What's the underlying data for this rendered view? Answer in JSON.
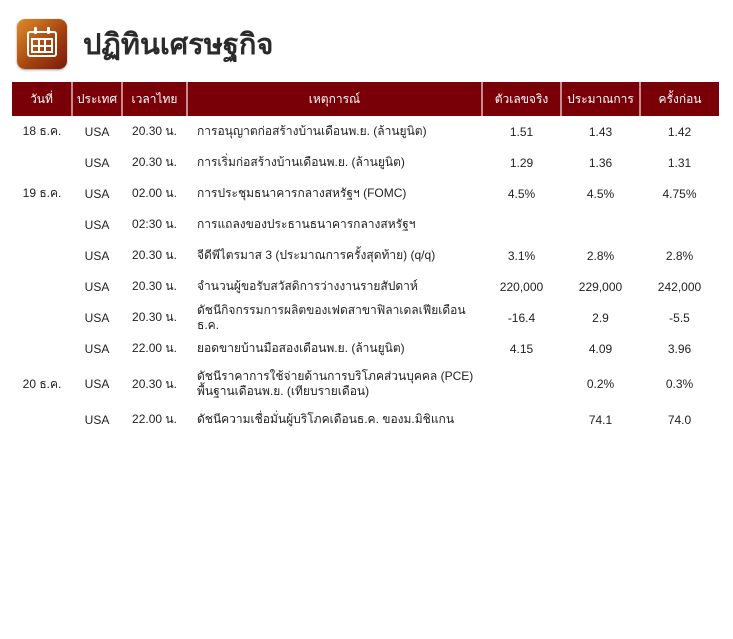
{
  "header": {
    "title": "ปฏิทินเศรษฐกิจ",
    "icon": "calendar-icon"
  },
  "table": {
    "columns": [
      "วันที่",
      "ประเทศ",
      "เวลาไทย",
      "เหตุการณ์",
      "ตัวเลขจริง",
      "ประมาณการ",
      "ครั้งก่อน"
    ],
    "rows": [
      {
        "date": "18 ธ.ค.",
        "country": "USA",
        "time": "20.30 น.",
        "event": "การอนุญาตก่อสร้างบ้านเดือนพ.ย. (ล้านยูนิต)",
        "actual": "1.51",
        "forecast": "1.43",
        "previous": "1.42"
      },
      {
        "date": "",
        "country": "USA",
        "time": "20.30 น.",
        "event": "การเริ่มก่อสร้างบ้านเดือนพ.ย. (ล้านยูนิต)",
        "actual": "1.29",
        "forecast": "1.36",
        "previous": "1.31"
      },
      {
        "date": "19 ธ.ค.",
        "country": "USA",
        "time": "02.00 น.",
        "event": "การประชุมธนาคารกลางสหรัฐฯ (FOMC)",
        "actual": "4.5%",
        "forecast": "4.5%",
        "previous": "4.75%"
      },
      {
        "date": "",
        "country": "USA",
        "time": "02:30 น.",
        "event": "การแถลงของประธานธนาคารกลางสหรัฐฯ",
        "actual": "",
        "forecast": "",
        "previous": ""
      },
      {
        "date": "",
        "country": "USA",
        "time": "20.30 น.",
        "event": "จีดีพีไตรมาส 3 (ประมาณการครั้งสุดท้าย) (q/q)",
        "actual": "3.1%",
        "forecast": "2.8%",
        "previous": "2.8%"
      },
      {
        "date": "",
        "country": "USA",
        "time": "20.30 น.",
        "event": "จำนวนผู้ขอรับสวัสดิการว่างงานรายสัปดาห์",
        "actual": "220,000",
        "forecast": "229,000",
        "previous": "242,000"
      },
      {
        "date": "",
        "country": "USA",
        "time": "20.30 น.",
        "event": "ดัชนีกิจกรรมการผลิตของเฟดสาขาฟิลาเดลเฟียเดือนธ.ค.",
        "actual": "-16.4",
        "forecast": "2.9",
        "previous": "-5.5"
      },
      {
        "date": "",
        "country": "USA",
        "time": "22.00 น.",
        "event": "ยอดขายบ้านมือสองเดือนพ.ย. (ล้านยูนิต)",
        "actual": "4.15",
        "forecast": "4.09",
        "previous": "3.96"
      },
      {
        "date": "20 ธ.ค.",
        "country": "USA",
        "time": "20.30 น.",
        "event": "ดัชนีราคาการใช้จ่ายด้านการบริโภคส่วนบุคคล (PCE) พื้นฐานเดือนพ.ย. (เทียบรายเดือน)",
        "actual": "",
        "forecast": "0.2%",
        "previous": "0.3%"
      },
      {
        "date": "",
        "country": "USA",
        "time": "22.00 น.",
        "event": "ดัชนีความเชื่อมั่นผู้บริโภคเดือนธ.ค. ของม.มิชิแกน",
        "actual": "",
        "forecast": "74.1",
        "previous": "74.0"
      }
    ]
  },
  "colors": {
    "header_bg": "#7a0008"
  }
}
